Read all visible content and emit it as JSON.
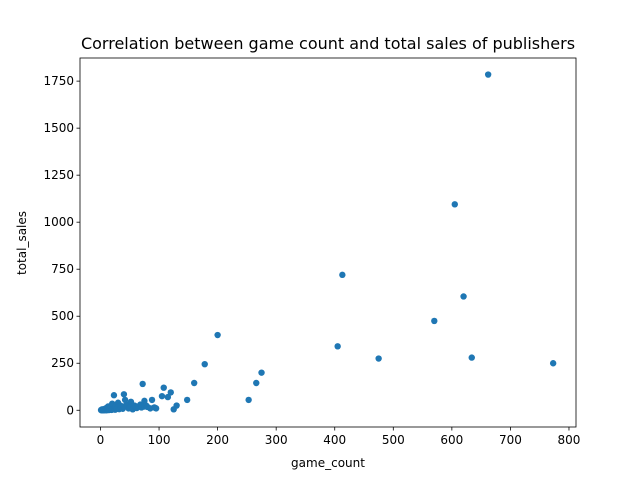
{
  "chart_data": {
    "type": "scatter",
    "title": "Correlation between game count and total sales of publishers",
    "xlabel": "game_count",
    "ylabel": "total_sales",
    "xlim": [
      -35,
      812
    ],
    "ylim": [
      -89,
      1873
    ],
    "xticks": [
      0,
      100,
      200,
      300,
      400,
      500,
      600,
      700,
      800
    ],
    "yticks": [
      0,
      250,
      500,
      750,
      1000,
      1250,
      1500,
      1750
    ],
    "grid": false,
    "legend": "none",
    "marker_color": "#1f77b4",
    "series": [
      {
        "x": [
          1,
          2,
          2,
          3,
          3,
          4,
          4,
          5,
          5,
          6,
          6,
          7,
          7,
          8,
          8,
          9,
          10,
          10,
          11,
          12,
          12,
          13,
          14,
          14,
          15,
          16,
          17,
          18,
          19,
          20,
          20,
          22,
          23,
          24,
          25,
          26,
          28,
          30,
          30,
          32,
          34,
          35,
          38,
          40,
          40,
          42,
          45,
          48,
          50,
          52,
          55,
          58,
          60,
          62,
          65,
          68,
          70,
          72,
          75,
          75,
          78,
          80,
          85,
          88,
          92,
          95,
          105,
          108,
          115,
          120,
          125,
          130,
          148,
          160,
          178,
          200,
          253,
          266,
          275,
          405,
          413,
          475,
          570,
          605,
          620,
          634,
          662,
          773
        ],
        "y": [
          1,
          0,
          3,
          1,
          5,
          0,
          2,
          1,
          4,
          0,
          3,
          2,
          6,
          1,
          8,
          3,
          0,
          12,
          5,
          2,
          9,
          20,
          1,
          6,
          3,
          10,
          4,
          15,
          2,
          7,
          35,
          5,
          80,
          12,
          3,
          20,
          8,
          40,
          15,
          6,
          25,
          12,
          8,
          85,
          20,
          55,
          30,
          10,
          15,
          45,
          5,
          25,
          18,
          12,
          20,
          30,
          15,
          140,
          20,
          50,
          25,
          18,
          10,
          55,
          15,
          10,
          75,
          120,
          70,
          95,
          5,
          25,
          55,
          145,
          245,
          400,
          55,
          145,
          200,
          340,
          720,
          275,
          475,
          1095,
          605,
          280,
          1785,
          250
        ]
      }
    ]
  }
}
